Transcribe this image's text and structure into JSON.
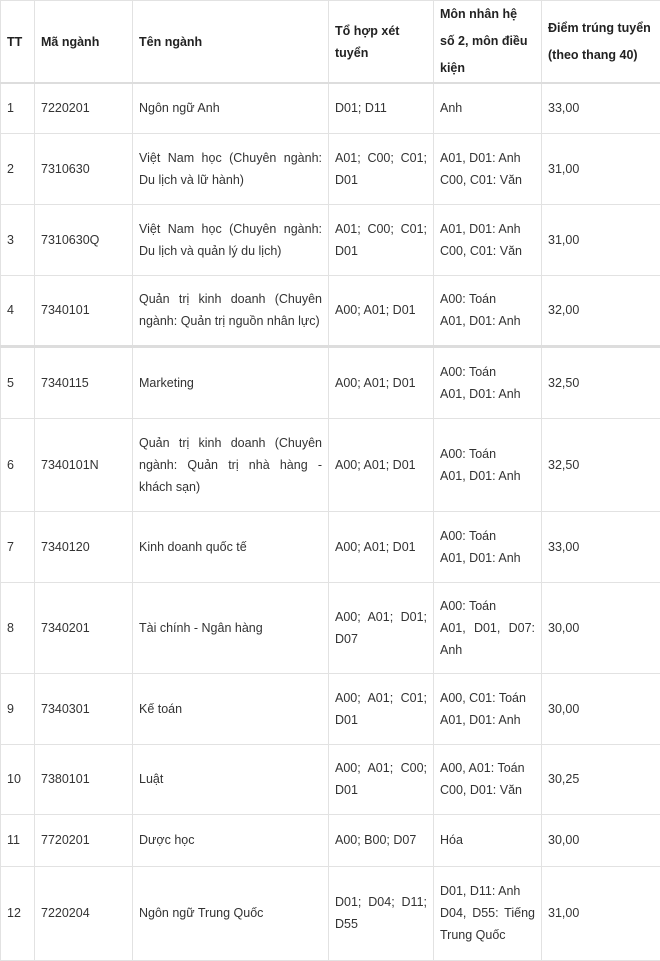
{
  "headers": [
    "TT",
    "Mã ngành",
    "Tên ngành",
    "Tổ hợp xét tuyển",
    "Môn nhân hệ số 2, môn điều kiện",
    "Điểm trúng tuyển (theo thang 40)"
  ],
  "rows": [
    [
      "1",
      "7220201",
      "Ngôn ngữ Anh",
      "D01; D11",
      "Anh",
      "33,00"
    ],
    [
      "2",
      "7310630",
      "Việt Nam học (Chuyên ngành: Du lịch và lữ hành)",
      "A01; C00; C01; D01",
      "A01, D01: Anh\nC00, C01: Văn",
      "31,00"
    ],
    [
      "3",
      "7310630Q",
      "Việt Nam học (Chuyên ngành: Du lịch và quản lý du lịch)",
      "A01; C00; C01; D01",
      "A01, D01: Anh\nC00, C01: Văn",
      "31,00"
    ],
    [
      "4",
      "7340101",
      "Quản trị kinh doanh (Chuyên ngành: Quản trị nguồn nhân lực)",
      "A00; A01; D01",
      "A00: Toán\nA01, D01: Anh",
      "32,00"
    ],
    [
      "5",
      "7340115",
      "Marketing",
      "A00; A01; D01",
      "A00: Toán\nA01, D01: Anh",
      "32,50"
    ],
    [
      "6",
      "7340101N",
      "Quản trị kinh doanh (Chuyên ngành: Quản trị nhà hàng - khách sạn)",
      "A00; A01; D01",
      "A00: Toán\nA01, D01: Anh",
      "32,50"
    ],
    [
      "7",
      "7340120",
      "Kinh doanh quốc tế",
      "A00; A01; D01",
      "A00: Toán\nA01, D01: Anh",
      "33,00"
    ],
    [
      "8",
      "7340201",
      "Tài chính - Ngân hàng",
      "A00; A01; D01; D07",
      "A00: Toán\nA01, D01, D07: Anh",
      "30,00"
    ],
    [
      "9",
      "7340301",
      "Kế toán",
      "A00; A01; C01; D01",
      "A00, C01: Toán\nA01, D01: Anh",
      "30,00"
    ],
    [
      "10",
      "7380101",
      "Luật",
      "A00; A01; C00; D01",
      "A00, A01: Toán\nC00, D01: Văn",
      "30,25"
    ],
    [
      "11",
      "7720201",
      "Dược học",
      "A00; B00; D07",
      "Hóa",
      "30,00"
    ],
    [
      "12",
      "7220204",
      "Ngôn ngữ Trung Quốc",
      "D01; D04; D11; D55",
      "D01, D11: Anh\nD04, D55: Tiếng Trung Quốc",
      "31,00"
    ]
  ]
}
